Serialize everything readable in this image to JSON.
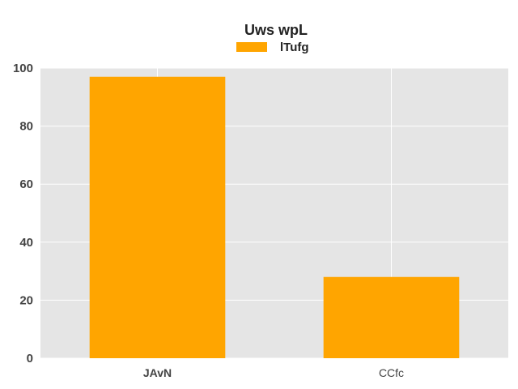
{
  "chart_data": {
    "type": "bar",
    "title": "Uws wpL",
    "categories": [
      "JAvN",
      "CCfc"
    ],
    "series": [
      {
        "name": "lTufg",
        "values": [
          97,
          28
        ]
      }
    ],
    "xlabel": "",
    "ylabel": "",
    "ylim": [
      0,
      100
    ],
    "yticks": [
      0,
      20,
      40,
      60,
      80,
      100
    ],
    "grid": true,
    "legend_position": "top-center",
    "colors": {
      "bar": "#FFA500",
      "plot_background": "#E5E5E5",
      "grid": "#FFFFFF"
    }
  }
}
